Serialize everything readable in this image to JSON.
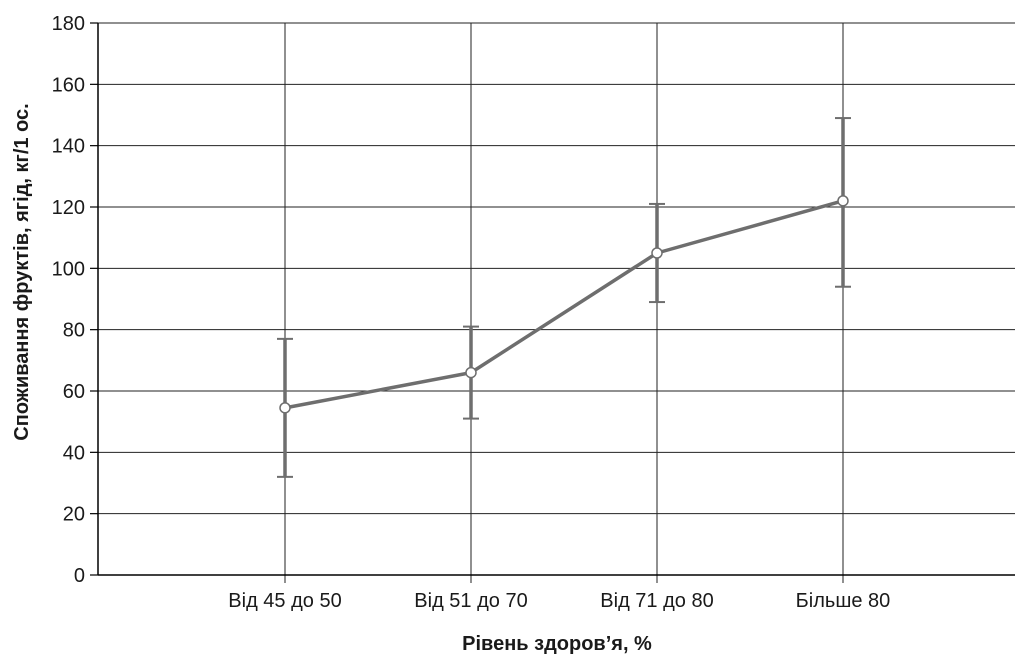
{
  "chart_data": {
    "type": "line",
    "categories": [
      "Від 45 до 50",
      "Від 51 до 70",
      "Від 71 до 80",
      "Більше 80"
    ],
    "series": [
      {
        "values": [
          54.5,
          66,
          105,
          122
        ],
        "error_low": [
          32,
          51,
          89,
          94
        ],
        "error_high": [
          77,
          81,
          121,
          149
        ]
      }
    ],
    "xlabel": "Рівень здоров’я, %",
    "ylabel": "Споживання фруктів, ягід, кг/1 ос.",
    "ylim": [
      0,
      180
    ],
    "yticks": [
      0,
      20,
      40,
      60,
      80,
      100,
      120,
      140,
      160,
      180
    ],
    "grid": true,
    "markers": "open-circle",
    "error_bars": true
  },
  "colors": {
    "series": "#6e6e6e",
    "grid": "#222222",
    "axis": "#000000",
    "marker_fill": "#ffffff"
  }
}
